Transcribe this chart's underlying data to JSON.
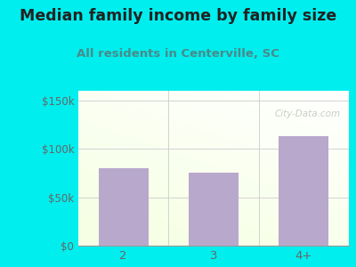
{
  "title": "Median family income by family size",
  "subtitle": "All residents in Centerville, SC",
  "categories": [
    "2",
    "3",
    "4+"
  ],
  "values": [
    80000,
    75000,
    113000
  ],
  "bar_color": "#b8a8cc",
  "title_color": "#222222",
  "subtitle_color": "#4a8a8a",
  "bg_color": "#00eeee",
  "yticks": [
    0,
    50000,
    100000,
    150000
  ],
  "ytick_labels": [
    "$0",
    "$50k",
    "$100k",
    "$150k"
  ],
  "ylim": [
    0,
    160000
  ],
  "title_fontsize": 12.5,
  "subtitle_fontsize": 9.5,
  "tick_color": "#666666",
  "watermark": "City-Data.com"
}
